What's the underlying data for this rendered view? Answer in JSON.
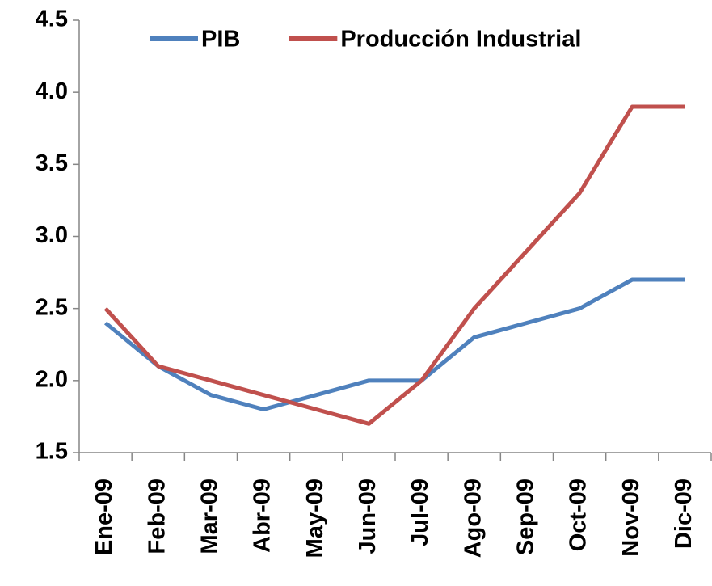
{
  "chart_data": {
    "type": "line",
    "categories": [
      "Ene-09",
      "Feb-09",
      "Mar-09",
      "Abr-09",
      "May-09",
      "Jun-09",
      "Jul-09",
      "Ago-09",
      "Sep-09",
      "Oct-09",
      "Nov-09",
      "Dic-09"
    ],
    "series": [
      {
        "name": "PIB",
        "color": "#4f81bd",
        "values": [
          2.4,
          2.1,
          1.9,
          1.8,
          1.9,
          2.0,
          2.0,
          2.3,
          2.4,
          2.5,
          2.7,
          2.7
        ]
      },
      {
        "name": "Producción Industrial",
        "color": "#c0504d",
        "values": [
          2.5,
          2.1,
          2.0,
          1.9,
          1.8,
          1.7,
          2.0,
          2.5,
          2.9,
          3.3,
          3.9,
          3.9
        ]
      }
    ],
    "ylim": [
      1.5,
      4.5
    ],
    "yticks": [
      1.5,
      {
        "value": 2,
        "label": "2.0"
      },
      2.5,
      {
        "value": 3,
        "label": "3.0"
      },
      3.5,
      {
        "value": 4,
        "label": "4.0"
      },
      4.5
    ],
    "legend": "top"
  }
}
